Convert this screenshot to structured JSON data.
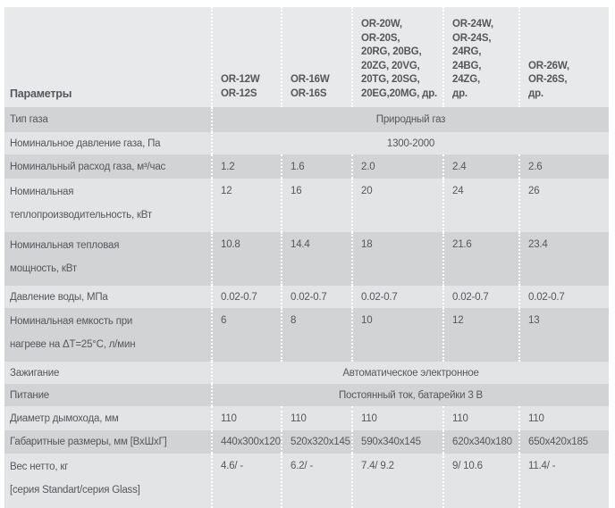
{
  "colors": {
    "page_bg": "#ffffff",
    "header_bg": "#e8e9eb",
    "row_light": "#e3e4e6",
    "row_dark": "#d2d3d5",
    "text": "#56575a",
    "divider": "#ffffff"
  },
  "table": {
    "header": {
      "param_label": "Параметры",
      "models": [
        {
          "lines": [
            "OR-12W",
            "OR-12S"
          ]
        },
        {
          "lines": [
            "OR-16W",
            "OR-16S"
          ]
        },
        {
          "lines": [
            "OR-20W,",
            "OR-20S,",
            "20RG, 20BG,",
            "20ZG, 20VG,",
            "20TG, 20SG,",
            "20EG,20MG, др."
          ]
        },
        {
          "lines": [
            "OR-24W,",
            "OR-24S,",
            "24RG,",
            "24BG,",
            "24ZG,",
            "др."
          ]
        },
        {
          "lines": [
            "OR-26W,",
            "OR-26S,",
            "др."
          ]
        }
      ]
    },
    "rows": [
      {
        "label": "Тип газа",
        "span": "Природный газ"
      },
      {
        "label": "Номинальное давление газа, Па",
        "span": "1300-2000"
      },
      {
        "label": "Номинальный расход газа, м³/час",
        "values": [
          "1.2",
          "1.6",
          "2.0",
          "2.4",
          "2.6"
        ]
      },
      {
        "label_lines": [
          "Номинальная",
          "теплопроизводительность, кВт"
        ],
        "values": [
          "12",
          "16",
          "20",
          "24",
          "26"
        ]
      },
      {
        "label_lines": [
          "Номинальная тепловая",
          "мощность, кВт"
        ],
        "values": [
          "10.8",
          "14.4",
          "18",
          "21.6",
          "23.4"
        ]
      },
      {
        "label": "Давление воды, МПа",
        "values": [
          "0.02-0.7",
          "0.02-0.7",
          "0.02-0.7",
          "0.02-0.7",
          "0.02-0.7"
        ]
      },
      {
        "label_lines": [
          "Номинальная емкость при",
          "нагреве на ΔT=25°C, л/мин"
        ],
        "values": [
          "6",
          "8",
          "10",
          "12",
          "13"
        ]
      },
      {
        "label": "Зажигание",
        "span": "Автоматическое электронное"
      },
      {
        "label": "Питание",
        "span": "Постоянный ток, батарейки 3 В"
      },
      {
        "label": "Диаметр дымохода, мм",
        "values": [
          "110",
          "110",
          "110",
          "110",
          "110"
        ]
      },
      {
        "label": "Габаритные размеры, мм [ВхШхГ]",
        "values": [
          "440x300x120",
          "520x320x145",
          "590x340x145",
          "620x340x180",
          "650x420x185"
        ]
      },
      {
        "label_lines": [
          "Вес нетто, кг",
          "[серия Standart/серия Glass]"
        ],
        "values": [
          "4.6/ -",
          "6.2/ -",
          "7.4/ 9.2",
          "9/ 10.6",
          "11.4/ -"
        ]
      }
    ]
  }
}
